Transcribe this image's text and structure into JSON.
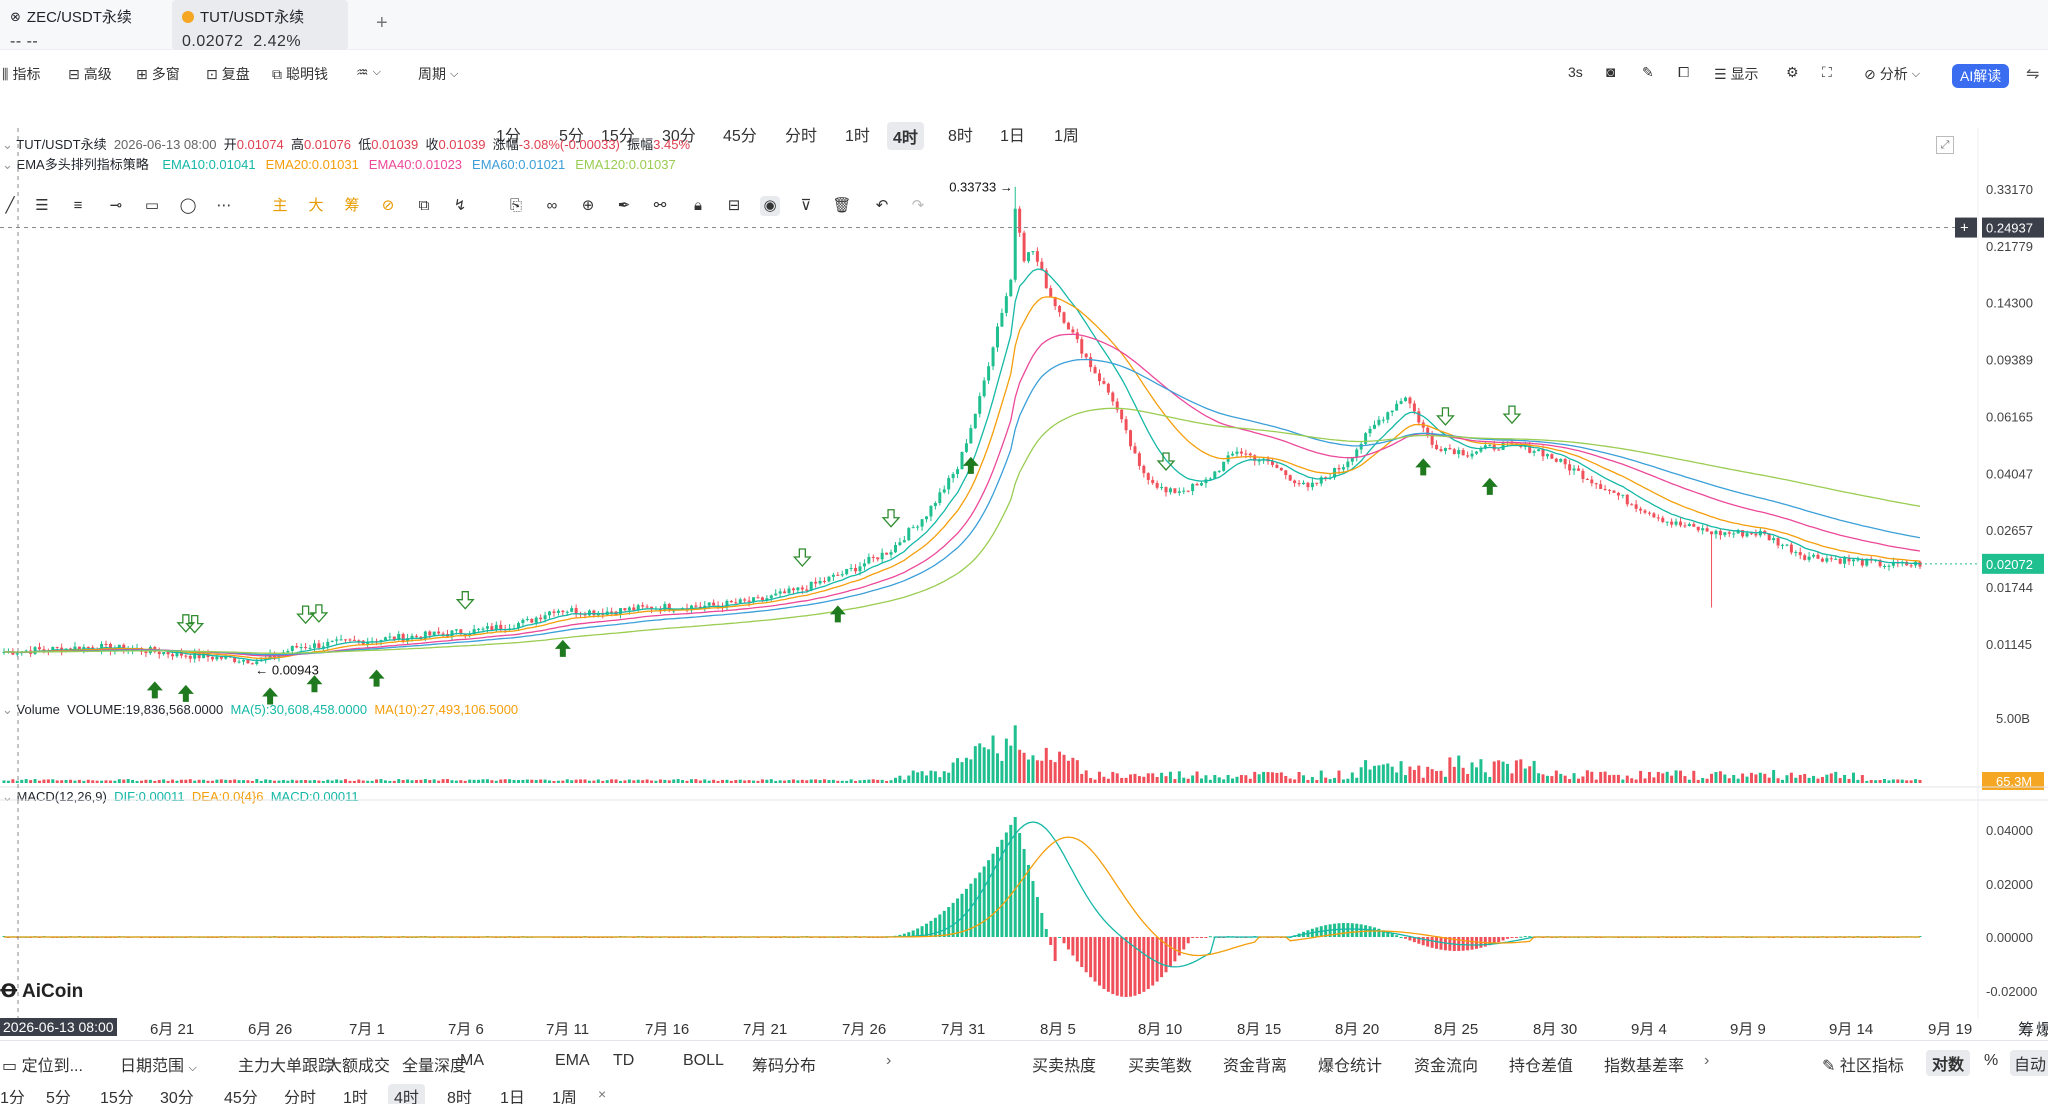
{
  "tabs": [
    {
      "symbol": "ZEC/USDT永续",
      "price": "-- --",
      "active": false
    },
    {
      "symbol": "TUT/USDT永续",
      "price": "0.02072",
      "change": "2.42%",
      "active": true
    }
  ],
  "add_tab": "+",
  "toolbar": {
    "indicators": "指标",
    "advanced": "高级",
    "multi_window": "多窗",
    "replay": "复盘",
    "smart_money": "聪明钱",
    "period": "周期",
    "intervals": [
      "1分",
      "5分",
      "15分",
      "30分",
      "45分",
      "分时",
      "1时",
      "4时",
      "8时",
      "1日",
      "1周"
    ],
    "selected_interval": "4时",
    "refresh": "3s",
    "display": "显示",
    "analysis": "分析",
    "ai": "AI解读"
  },
  "drawing_tools_main": [
    "主",
    "大",
    "筹"
  ],
  "chart_data": [
    {
      "type": "candlestick",
      "title": "TUT/USDT永续",
      "header": {
        "symbol": "TUT/USDT永续",
        "time": "2026-06-13 08:00",
        "open_label": "开",
        "open": "0.01074",
        "high_label": "高",
        "high": "0.01076",
        "low_label": "低",
        "low": "0.01039",
        "close_label": "收",
        "close": "0.01039",
        "change_label": "涨幅",
        "change": "-3.08%(-0.00033)",
        "amp_label": "振幅",
        "amp": "3.45%"
      },
      "indicator_name": "EMA多头排列指标策略",
      "ema": [
        {
          "name": "EMA10",
          "value": "0.01041",
          "color": "#14b8a6"
        },
        {
          "name": "EMA20",
          "value": "0.01031",
          "color": "#f59e0b"
        },
        {
          "name": "EMA40",
          "value": "0.01023",
          "color": "#ec4899"
        },
        {
          "name": "EMA60",
          "value": "0.01021",
          "color": "#3b9fd8"
        },
        {
          "name": "EMA120",
          "value": "0.01037",
          "color": "#9acd52"
        }
      ],
      "y_scale": "log",
      "y_ticks": [
        "0.33170",
        "0.21779",
        "0.14300",
        "0.09389",
        "0.06165",
        "0.04047",
        "0.02657",
        "0.01744",
        "0.01145"
      ],
      "x_ticks": [
        "6月 21",
        "6月 26",
        "7月 1",
        "7月 6",
        "7月 11",
        "7月 16",
        "7月 21",
        "7月 26",
        "7月 31",
        "8月 5",
        "8月 10",
        "8月 15",
        "8月 20",
        "8月 25",
        "8月 30",
        "9月 4",
        "9月 9",
        "9月 14",
        "9月 19"
      ],
      "crosshair_time": "2026-06-13 08:00",
      "crosshair_price": "0.24937",
      "last_price": "0.02072",
      "max_label": "0.33733",
      "min_label": "0.00943",
      "trend_points": [
        [
          0,
          0.0108
        ],
        [
          20,
          0.0112
        ],
        [
          30,
          0.011
        ],
        [
          40,
          0.0106
        ],
        [
          50,
          0.0103
        ],
        [
          58,
          0.0101
        ],
        [
          66,
          0.0112
        ],
        [
          80,
          0.0117
        ],
        [
          95,
          0.0122
        ],
        [
          108,
          0.0127
        ],
        [
          118,
          0.0135
        ],
        [
          124,
          0.0148
        ],
        [
          134,
          0.0145
        ],
        [
          146,
          0.015
        ],
        [
          160,
          0.0152
        ],
        [
          170,
          0.0158
        ],
        [
          180,
          0.0172
        ],
        [
          190,
          0.0195
        ],
        [
          200,
          0.023
        ],
        [
          208,
          0.03
        ],
        [
          215,
          0.042
        ],
        [
          220,
          0.07
        ],
        [
          224,
          0.12
        ],
        [
          228,
          0.19
        ],
        [
          232,
          0.21
        ],
        [
          236,
          0.15
        ],
        [
          240,
          0.12
        ],
        [
          245,
          0.09
        ],
        [
          250,
          0.07
        ],
        [
          256,
          0.042
        ],
        [
          262,
          0.035
        ],
        [
          270,
          0.037
        ],
        [
          278,
          0.048
        ],
        [
          286,
          0.043
        ],
        [
          294,
          0.036
        ],
        [
          302,
          0.043
        ],
        [
          310,
          0.06
        ],
        [
          316,
          0.072
        ],
        [
          322,
          0.05
        ],
        [
          330,
          0.047
        ],
        [
          338,
          0.05
        ],
        [
          346,
          0.048
        ],
        [
          356,
          0.04
        ],
        [
          366,
          0.033
        ],
        [
          376,
          0.028
        ],
        [
          386,
          0.026
        ],
        [
          396,
          0.026
        ],
        [
          406,
          0.022
        ],
        [
          416,
          0.0212
        ],
        [
          426,
          0.0205
        ],
        [
          432,
          0.0207
        ]
      ],
      "buy_signals_x": [
        34,
        41,
        60,
        70,
        84,
        126,
        188,
        218,
        320,
        335
      ],
      "sell_signals_x": [
        41,
        43,
        68,
        71,
        104,
        180,
        200,
        262,
        325,
        340
      ]
    },
    {
      "type": "bar",
      "title": "Volume",
      "legend": "VOLUME:19,836,568.0000",
      "ma5": "MA(5):30,608,458.0000",
      "ma10": "MA(10):27,493,106.5000",
      "y_ticks": [
        "5.00B"
      ],
      "last": "65.3M"
    },
    {
      "type": "bar",
      "title": "MACD(12,26,9)",
      "dif": "DIF:0.00011",
      "dea": "DEA:0.0{4}6",
      "macd": "MACD:0.00011",
      "y_ticks": [
        "0.04000",
        "0.02000",
        "0.00000",
        "-0.02000"
      ]
    }
  ],
  "bottom_bar": {
    "locate": "定位到...",
    "date_range": "日期范围",
    "tabs": [
      "主力大单跟踪",
      "大额成交",
      "全量深度",
      "MA",
      "EMA",
      "TD",
      "BOLL",
      "筹码分布"
    ],
    "right_tabs": [
      "买卖热度",
      "买卖笔数",
      "资金背离",
      "爆仓统计",
      "资金流向",
      "持仓差值",
      "指数基差率"
    ],
    "community": "社区指标",
    "log": "对数",
    "percent": "%",
    "auto": "自动"
  },
  "bottom_intervals": [
    "1分",
    "5分",
    "15分",
    "30分",
    "45分",
    "分时",
    "1时",
    "4时",
    "8时",
    "1日",
    "1周"
  ],
  "logo_text": "AiCoin",
  "right_corner": [
    "筹",
    "爆"
  ],
  "colors": {
    "up": "#1fbf8f",
    "down": "#f0505a",
    "accent": "#3a6df0"
  }
}
